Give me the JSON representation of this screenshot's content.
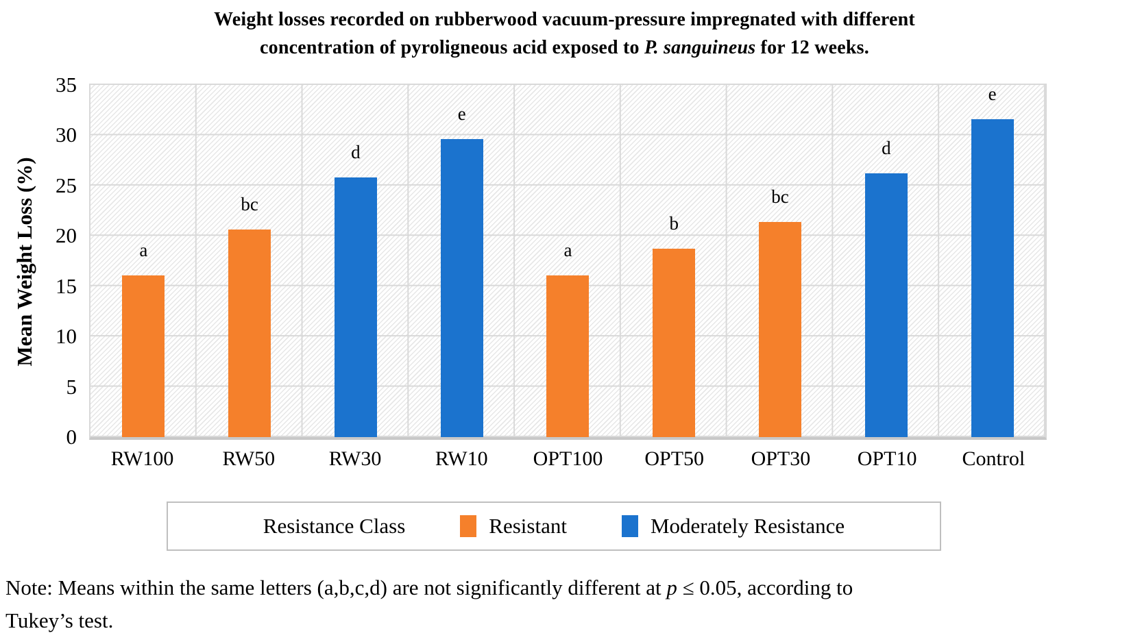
{
  "title": {
    "line1": "Weight losses recorded on rubberwood vacuum-pressure impregnated with different",
    "line2_pre": "concentration of pyroligneous acid exposed to ",
    "line2_italic": "P. sanguineus",
    "line2_post": " for 12 weeks."
  },
  "y_axis": {
    "label": "Mean Weight Loss (%)",
    "ticks": [
      0,
      5,
      10,
      15,
      20,
      25,
      30,
      35
    ]
  },
  "chart_data": {
    "type": "bar",
    "title": "Weight losses recorded on rubberwood vacuum-pressure impregnated with different concentration of pyroligneous acid exposed to P. sanguineus for 12 weeks.",
    "categories": [
      "RW100",
      "RW50",
      "RW30",
      "RW10",
      "OPT100",
      "OPT50",
      "OPT30",
      "OPT10",
      "Control"
    ],
    "values": [
      16.1,
      20.6,
      25.8,
      29.6,
      16.1,
      18.7,
      21.4,
      26.2,
      31.6
    ],
    "significance_letters": [
      "a",
      "bc",
      "d",
      "e",
      "a",
      "b",
      "bc",
      "d",
      "e"
    ],
    "series_class": [
      "Resistant",
      "Resistant",
      "Moderately Resistance",
      "Moderately Resistance",
      "Resistant",
      "Resistant",
      "Resistant",
      "Moderately Resistance",
      "Moderately Resistance"
    ],
    "colors": {
      "Resistant": "#F5802B",
      "Moderately Resistance": "#1B73CE"
    },
    "xlabel": "",
    "ylabel": "Mean Weight Loss (%)",
    "ylim": [
      0,
      35
    ],
    "grid": true,
    "grid_color": "#D9D9D9",
    "legend_position": "bottom"
  },
  "legend": {
    "title": "Resistance Class",
    "items": [
      {
        "label": "Resistant",
        "color": "#F5802B"
      },
      {
        "label": "Moderately Resistance",
        "color": "#1B73CE"
      }
    ]
  },
  "note": {
    "l1_pre": "Note: Means within the same letters (a,b,c,d) are not significantly different at ",
    "l1_italic": "p",
    "l1_post": " ≤ 0.05, according to",
    "line2": "Tukey’s test."
  }
}
